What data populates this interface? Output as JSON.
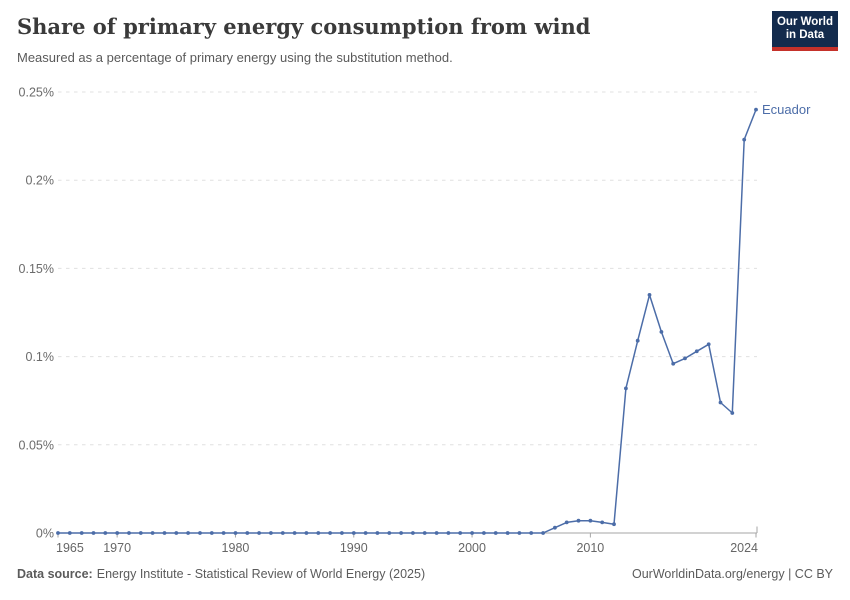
{
  "header": {
    "title": "Share of primary energy consumption from wind",
    "subtitle": "Measured as a percentage of primary energy using the substitution method."
  },
  "logo": {
    "line1": "Our World",
    "line2": "in Data",
    "background_color": "#132B4D",
    "accent_color": "#C5312A"
  },
  "footer": {
    "datasource_label": "Data source:",
    "datasource_text": "Energy Institute - Statistical Review of World Energy (2025)",
    "credit": "OurWorldinData.org/energy | CC BY"
  },
  "chart_data": {
    "type": "line",
    "title": "Share of primary energy consumption from wind",
    "xlabel": "",
    "ylabel": "",
    "ylim": [
      0,
      0.25
    ],
    "grid": "horizontal-dashed",
    "legend_position": "end-of-line-label",
    "axis_color": "#a6a6a6",
    "gridline_color": "#e0e0e0",
    "tick_label_color": "#6b6b6b",
    "x": [
      1965,
      1966,
      1967,
      1968,
      1969,
      1970,
      1971,
      1972,
      1973,
      1974,
      1975,
      1976,
      1977,
      1978,
      1979,
      1980,
      1981,
      1982,
      1983,
      1984,
      1985,
      1986,
      1987,
      1988,
      1989,
      1990,
      1991,
      1992,
      1993,
      1994,
      1995,
      1996,
      1997,
      1998,
      1999,
      2000,
      2001,
      2002,
      2003,
      2004,
      2005,
      2006,
      2007,
      2008,
      2009,
      2010,
      2011,
      2012,
      2013,
      2014,
      2015,
      2016,
      2017,
      2018,
      2019,
      2020,
      2021,
      2022,
      2023,
      2024
    ],
    "series": [
      {
        "name": "Ecuador",
        "color": "#4C6DA8",
        "values": [
          0,
          0,
          0,
          0,
          0,
          0,
          0,
          0,
          0,
          0,
          0,
          0,
          0,
          0,
          0,
          0,
          0,
          0,
          0,
          0,
          0,
          0,
          0,
          0,
          0,
          0,
          0,
          0,
          0,
          0,
          0,
          0,
          0,
          0,
          0,
          0,
          0,
          0,
          0,
          0,
          0,
          0,
          0.003,
          0.006,
          0.007,
          0.007,
          0.006,
          0.005,
          0.082,
          0.109,
          0.135,
          0.114,
          0.096,
          0.099,
          0.103,
          0.107,
          0.074,
          0.068,
          0.223,
          0.24
        ]
      }
    ],
    "yticks": [
      {
        "value": 0,
        "label": "0%"
      },
      {
        "value": 0.05,
        "label": "0.05%"
      },
      {
        "value": 0.1,
        "label": "0.1%"
      },
      {
        "value": 0.15,
        "label": "0.15%"
      },
      {
        "value": 0.2,
        "label": "0.2%"
      },
      {
        "value": 0.25,
        "label": "0.25%"
      }
    ],
    "xticks": [
      {
        "value": 1965,
        "label": "1965"
      },
      {
        "value": 1970,
        "label": "1970"
      },
      {
        "value": 1980,
        "label": "1980"
      },
      {
        "value": 1990,
        "label": "1990"
      },
      {
        "value": 2000,
        "label": "2000"
      },
      {
        "value": 2010,
        "label": "2010"
      },
      {
        "value": 2024,
        "label": "2024"
      }
    ]
  }
}
